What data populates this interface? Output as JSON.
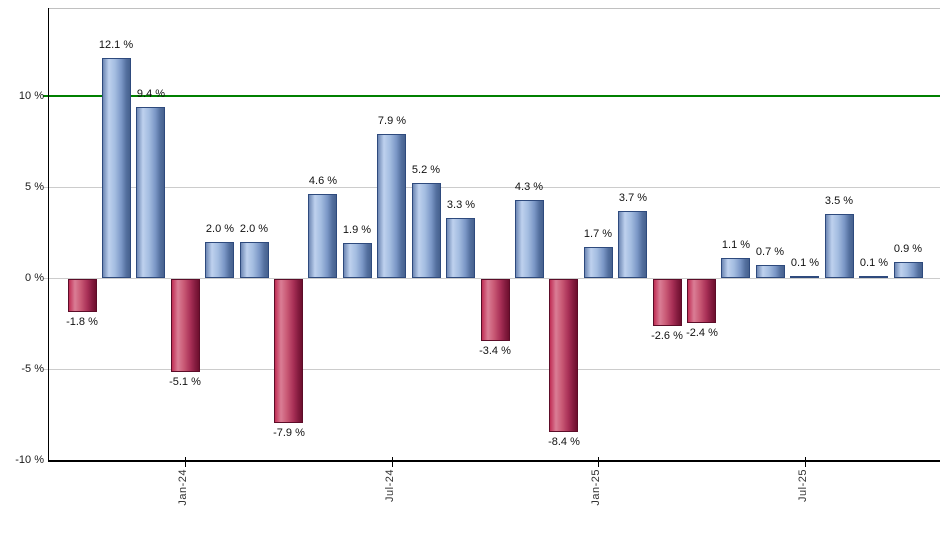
{
  "chart_data": {
    "type": "bar",
    "title": "",
    "values": [
      -1.8,
      12.1,
      9.4,
      -5.1,
      2.0,
      2.0,
      -7.9,
      4.6,
      1.9,
      7.9,
      5.2,
      3.3,
      -3.4,
      4.3,
      -8.4,
      1.7,
      3.7,
      -2.6,
      -2.4,
      1.1,
      0.7,
      0.1,
      3.5,
      0.1,
      0.9
    ],
    "bar_labels": [
      "-1.8 %",
      "12.1 %",
      "9.4 %",
      "-5.1 %",
      "2.0 %",
      "2.0 %",
      "-7.9 %",
      "4.6 %",
      "1.9 %",
      "7.9 %",
      "5.2 %",
      "3.3 %",
      "-3.4 %",
      "4.3 %",
      "-8.4 %",
      "1.7 %",
      "3.7 %",
      "-2.6 %",
      "-2.4 %",
      "1.1 %",
      "0.7 %",
      "0.1 %",
      "3.5 %",
      "0.1 %",
      "0.9 %"
    ],
    "x_ticks": [
      {
        "bar_index": 3,
        "label": "Jan-24"
      },
      {
        "bar_index": 9,
        "label": "Jul-24"
      },
      {
        "bar_index": 15,
        "label": "Jan-25"
      },
      {
        "bar_index": 21,
        "label": "Jul-25"
      }
    ],
    "y_ticks": [
      {
        "value": 10,
        "label": "10 %"
      },
      {
        "value": 5,
        "label": "5 %"
      },
      {
        "value": 0,
        "label": "0 %"
      },
      {
        "value": -5,
        "label": "-5 %"
      },
      {
        "value": -10,
        "label": "-10 %"
      }
    ],
    "ylim": [
      -10,
      14.8
    ],
    "grid": true,
    "legend_position": "none",
    "reference_line": {
      "value": 10,
      "color": "#008000"
    },
    "colors": {
      "positive_bar_stops": [
        [
          "#6d87b4",
          0
        ],
        [
          "#bed1ee",
          22
        ],
        [
          "#a3bce0",
          45
        ],
        [
          "#7b97c6",
          68
        ],
        [
          "#54709f",
          86
        ],
        [
          "#46618e",
          100
        ]
      ],
      "positive_border": "#2e4a7d",
      "negative_bar_stops": [
        [
          "#c02e55",
          0
        ],
        [
          "#da7d95",
          22
        ],
        [
          "#c85874",
          45
        ],
        [
          "#a93057",
          68
        ],
        [
          "#851c3f",
          86
        ],
        [
          "#6e0f2e",
          100
        ]
      ],
      "negative_border": "#5c0c28",
      "gridline": "#cccccc",
      "plot_border": "#c0c0c0",
      "axis": "#000000",
      "label_text": "#111111",
      "tick_text": "#333333"
    }
  }
}
